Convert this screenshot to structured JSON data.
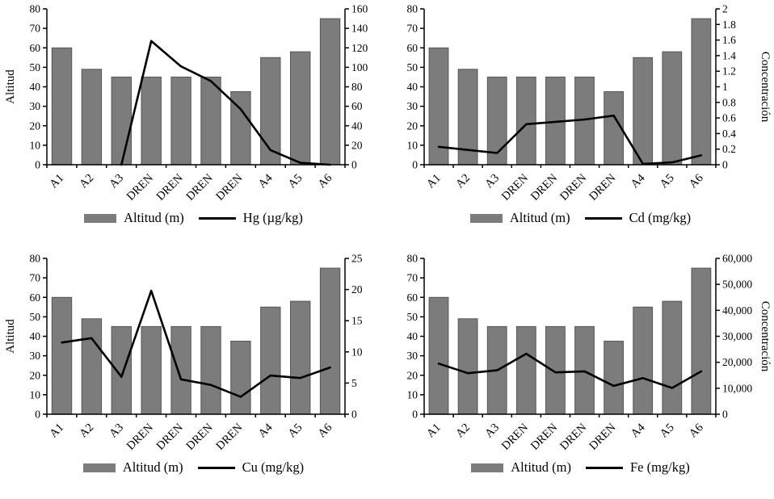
{
  "colors": {
    "bar": "#7c7c7c",
    "bar_stroke": "#565656",
    "line": "#000000",
    "axis": "#000000",
    "background": "#ffffff"
  },
  "chart_data": [
    {
      "name": "altitud-vs-hg",
      "type": "bar-line",
      "categories": [
        "A1",
        "A2",
        "A3",
        "DREN",
        "DREN",
        "DREN",
        "DREN",
        "A4",
        "A5",
        "A6"
      ],
      "bars": {
        "label": "Altitud (m)",
        "axis": "left",
        "values": [
          60,
          49,
          45,
          45,
          45,
          45,
          37.5,
          55,
          58,
          75
        ]
      },
      "line": {
        "label": "Hg (µg/kg)",
        "axis": "right",
        "values": [
          null,
          null,
          0,
          127,
          101,
          86,
          57,
          15,
          2,
          0
        ]
      },
      "axes": {
        "left": {
          "title": "Altitud",
          "min": 0,
          "max": 80,
          "ticks": [
            "0",
            "10",
            "20",
            "30",
            "40",
            "50",
            "60",
            "70",
            "80"
          ]
        },
        "right": {
          "title": "",
          "min": 0,
          "max": 160,
          "ticks": [
            "0",
            "20",
            "40",
            "60",
            "80",
            "100",
            "120",
            "140",
            "160"
          ]
        }
      }
    },
    {
      "name": "altitud-vs-cd",
      "type": "bar-line",
      "categories": [
        "A1",
        "A2",
        "A3",
        "DREN",
        "DREN",
        "DREN",
        "DREN",
        "A4",
        "A5",
        "A6"
      ],
      "bars": {
        "label": "Altitud (m)",
        "axis": "left",
        "values": [
          60,
          49,
          45,
          45,
          45,
          45,
          37.5,
          55,
          58,
          75
        ]
      },
      "line": {
        "label": "Cd (mg/kg)",
        "axis": "right",
        "values": [
          0.23,
          0.19,
          0.15,
          0.52,
          0.55,
          0.58,
          0.63,
          0.01,
          0.03,
          0.12
        ]
      },
      "axes": {
        "left": {
          "title": "",
          "min": 0,
          "max": 80,
          "ticks": [
            "0",
            "10",
            "20",
            "30",
            "40",
            "50",
            "60",
            "70",
            "80"
          ]
        },
        "right": {
          "title": "Concentración",
          "min": 0,
          "max": 2,
          "ticks": [
            "0",
            "0.2",
            "0.4",
            "0.6",
            "0.8",
            "1",
            "1.2",
            "1.4",
            "1.6",
            "1.8",
            "2"
          ]
        }
      }
    },
    {
      "name": "altitud-vs-cu",
      "type": "bar-line",
      "categories": [
        "A1",
        "A2",
        "A3",
        "DREN",
        "DREN",
        "DREN",
        "DREN",
        "A4",
        "A5",
        "A6"
      ],
      "bars": {
        "label": "Altitud (m)",
        "axis": "left",
        "values": [
          60,
          49,
          45,
          45,
          45,
          45,
          37.5,
          55,
          58,
          75
        ]
      },
      "line": {
        "label": "Cu (mg/kg)",
        "axis": "right",
        "values": [
          11.5,
          12.2,
          6,
          19.8,
          5.6,
          4.7,
          2.8,
          6.2,
          5.8,
          7.5
        ]
      },
      "axes": {
        "left": {
          "title": "Altitud",
          "min": 0,
          "max": 80,
          "ticks": [
            "0",
            "10",
            "20",
            "30",
            "40",
            "50",
            "60",
            "70",
            "80"
          ]
        },
        "right": {
          "title": "",
          "min": 0,
          "max": 25,
          "ticks": [
            "0",
            "5",
            "10",
            "15",
            "20",
            "25"
          ]
        }
      }
    },
    {
      "name": "altitud-vs-fe",
      "type": "bar-line",
      "categories": [
        "A1",
        "A2",
        "A3",
        "DREN",
        "DREN",
        "DREN",
        "DREN",
        "A4",
        "A5",
        "A6"
      ],
      "bars": {
        "label": "Altitud (m)",
        "axis": "left",
        "values": [
          60,
          49,
          45,
          45,
          45,
          45,
          37.5,
          55,
          58,
          75
        ]
      },
      "line": {
        "label": "Fe (mg/kg)",
        "axis": "right",
        "values": [
          19500,
          15800,
          16900,
          23300,
          16100,
          16500,
          10900,
          13900,
          10100,
          16500
        ]
      },
      "axes": {
        "left": {
          "title": "",
          "min": 0,
          "max": 80,
          "ticks": [
            "0",
            "10",
            "20",
            "30",
            "40",
            "50",
            "60",
            "70",
            "80"
          ]
        },
        "right": {
          "title": "Concentración",
          "min": 0,
          "max": 60000,
          "ticks": [
            "0",
            "10,000",
            "20,000",
            "30,000",
            "40,000",
            "50,000",
            "60,000"
          ]
        }
      }
    }
  ]
}
